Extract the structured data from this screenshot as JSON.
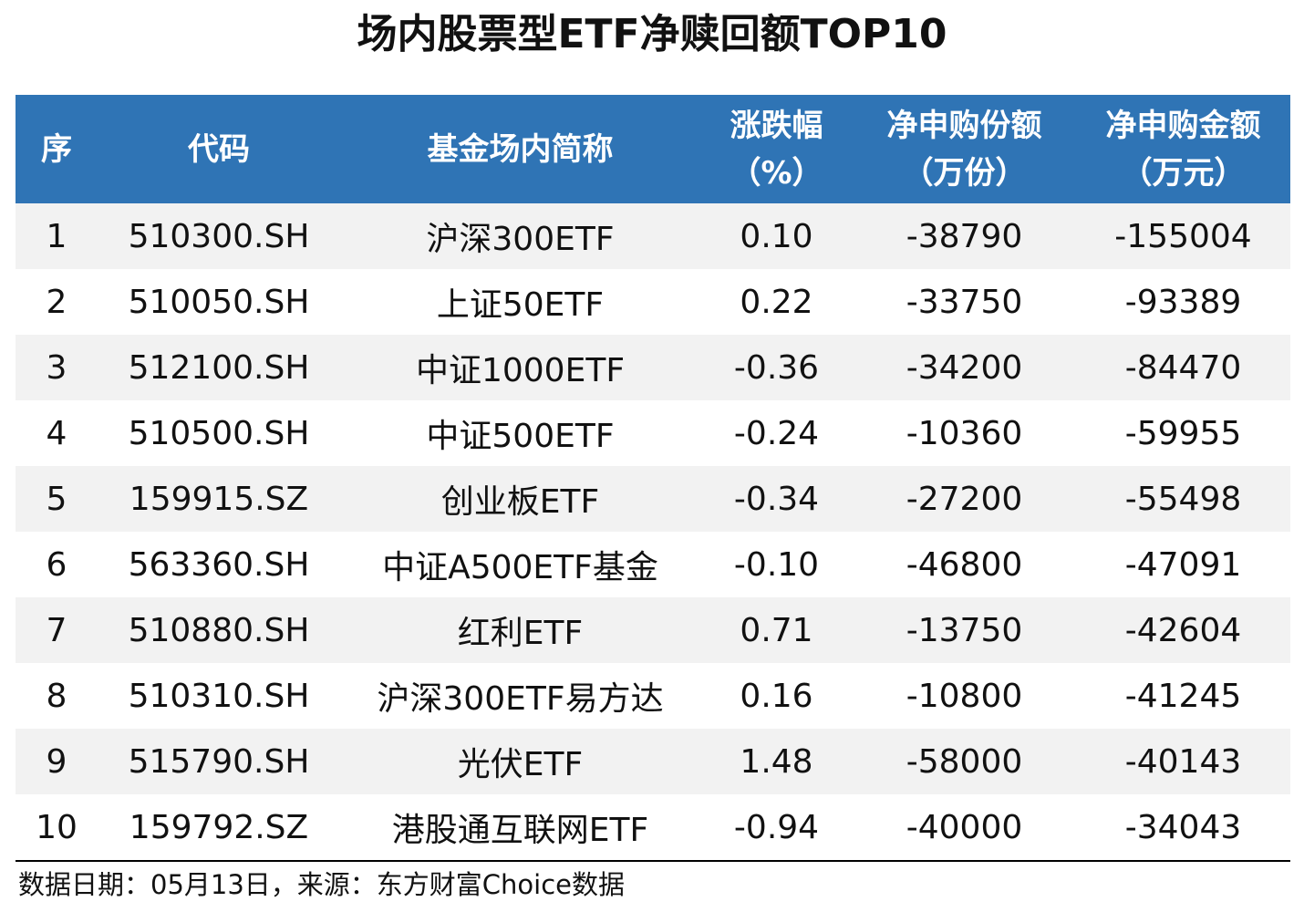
{
  "title": "场内股票型ETF净赎回额TOP10",
  "table": {
    "header": [
      [
        "序"
      ],
      [
        "代码"
      ],
      [
        "基金场内简称"
      ],
      [
        "涨跌幅",
        "（%）"
      ],
      [
        "净申购份额",
        "（万份）"
      ],
      [
        "净申购金额",
        "（万元）"
      ]
    ],
    "rows": [
      [
        "1",
        "510300.SH",
        "沪深300ETF",
        "0.10",
        "-38790",
        "-155004"
      ],
      [
        "2",
        "510050.SH",
        "上证50ETF",
        "0.22",
        "-33750",
        "-93389"
      ],
      [
        "3",
        "512100.SH",
        "中证1000ETF",
        "-0.36",
        "-34200",
        "-84470"
      ],
      [
        "4",
        "510500.SH",
        "中证500ETF",
        "-0.24",
        "-10360",
        "-59955"
      ],
      [
        "5",
        "159915.SZ",
        "创业板ETF",
        "-0.34",
        "-27200",
        "-55498"
      ],
      [
        "6",
        "563360.SH",
        "中证A500ETF基金",
        "-0.10",
        "-46800",
        "-47091"
      ],
      [
        "7",
        "510880.SH",
        "红利ETF",
        "0.71",
        "-13750",
        "-42604"
      ],
      [
        "8",
        "510310.SH",
        "沪深300ETF易方达",
        "0.16",
        "-10800",
        "-41245"
      ],
      [
        "9",
        "515790.SH",
        "光伏ETF",
        "1.48",
        "-58000",
        "-40143"
      ],
      [
        "10",
        "159792.SZ",
        "港股通互联网ETF",
        "-0.94",
        "-40000",
        "-34043"
      ]
    ]
  },
  "footer": "数据日期：05月13日，来源：东方财富Choice数据"
}
